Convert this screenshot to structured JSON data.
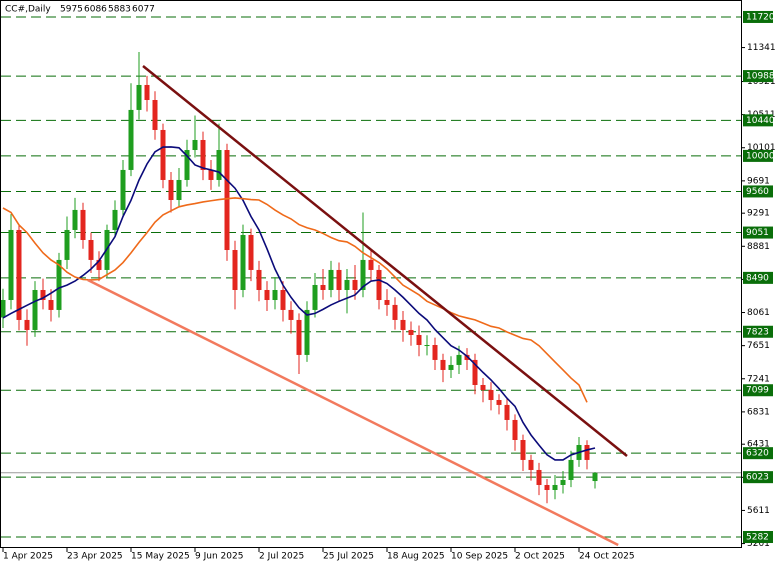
{
  "chart_data": {
    "type": "candlestick",
    "title": "CC#,Daily",
    "categories": [
      "1 Apr 2025",
      null,
      null,
      null,
      null,
      null,
      null,
      null,
      "23 Apr 2025",
      null,
      null,
      null,
      null,
      null,
      null,
      null,
      "15 May 2025",
      null,
      null,
      null,
      null,
      null,
      null,
      null,
      "9 Jun 2025",
      null,
      null,
      null,
      null,
      null,
      null,
      null,
      "2 Jul 2025",
      null,
      null,
      null,
      null,
      null,
      null,
      null,
      "25 Jul 2025",
      null,
      null,
      null,
      null,
      null,
      null,
      null,
      "18 Aug 2025",
      null,
      null,
      null,
      null,
      null,
      null,
      null,
      "10 Sep 2025",
      null,
      null,
      null,
      null,
      null,
      null,
      null,
      "2 Oct 2025",
      null,
      null,
      null,
      null,
      null,
      null,
      null,
      "24 Oct 2025",
      null,
      null
    ],
    "open": [
      8000,
      8216,
      9083,
      7969,
      7845,
      8340,
      8216,
      8093,
      8712,
      9083,
      9331,
      8959,
      8712,
      8588,
      9083,
      9331,
      9826,
      10569,
      10878,
      10692,
      10321,
      9702,
      9454,
      9702,
      10073,
      10197,
      9826,
      9702,
      10073,
      8835,
      8340,
      9021,
      8588,
      8340,
      8216,
      8340,
      8093,
      7969,
      7536,
      8093,
      8402,
      8340,
      8588,
      8340,
      8464,
      8340,
      8712,
      8588,
      8216,
      8155,
      7969,
      7845,
      7783,
      7659,
      7659,
      7474,
      7350,
      7412,
      7536,
      7474,
      7164,
      7102,
      6978,
      6917,
      6731,
      6483,
      6236,
      6112,
      5926,
      5864,
      5926,
      5988,
      6236,
      6421,
      5975
    ],
    "high": [
      8356,
      9280,
      9150,
      8100,
      8450,
      8480,
      8350,
      8800,
      9250,
      9480,
      9420,
      9050,
      8820,
      9150,
      9450,
      9950,
      10900,
      11287,
      10990,
      10800,
      10400,
      9800,
      9850,
      10200,
      10500,
      10300,
      9950,
      10400,
      10150,
      8950,
      9150,
      9100,
      8700,
      8450,
      8500,
      8450,
      8200,
      8050,
      8200,
      8550,
      8600,
      8700,
      8680,
      8600,
      8650,
      9300,
      8850,
      8650,
      8350,
      8250,
      8080,
      7950,
      7900,
      7780,
      7750,
      7550,
      7520,
      7650,
      7620,
      7550,
      7250,
      7200,
      7050,
      7000,
      6800,
      6550,
      6300,
      6200,
      6000,
      6050,
      6100,
      6350,
      6520,
      6480,
      6086
    ],
    "low": [
      7870,
      8100,
      7840,
      7650,
      7760,
      8100,
      7950,
      8000,
      8600,
      8980,
      8850,
      8550,
      8450,
      8500,
      9000,
      9250,
      9750,
      10450,
      10550,
      10200,
      9600,
      9300,
      9380,
      9620,
      9980,
      9700,
      9580,
      9620,
      8700,
      8100,
      8250,
      8450,
      8200,
      8080,
      8100,
      7950,
      7800,
      7300,
      7450,
      8000,
      8220,
      8250,
      8200,
      8050,
      8220,
      8250,
      8450,
      8100,
      8020,
      7850,
      7700,
      7650,
      7520,
      7530,
      7350,
      7200,
      7250,
      7300,
      7350,
      7050,
      6950,
      6850,
      6800,
      6600,
      6350,
      6100,
      5980,
      5800,
      5700,
      5750,
      5820,
      5900,
      6150,
      6120,
      5883
    ],
    "close": [
      8216,
      9083,
      7969,
      7845,
      8340,
      8216,
      8093,
      8712,
      9083,
      9331,
      8959,
      8712,
      8588,
      9083,
      9331,
      9826,
      10569,
      10878,
      10692,
      10321,
      9702,
      9454,
      9702,
      10073,
      10197,
      9826,
      9702,
      10073,
      8835,
      8340,
      9021,
      8588,
      8340,
      8216,
      8340,
      8093,
      7969,
      7536,
      8093,
      8402,
      8340,
      8588,
      8340,
      8464,
      8340,
      8712,
      8588,
      8216,
      8155,
      7969,
      7845,
      7783,
      7659,
      7659,
      7474,
      7350,
      7412,
      7536,
      7474,
      7164,
      7102,
      6978,
      6917,
      6731,
      6483,
      6236,
      6112,
      5926,
      5864,
      5926,
      5988,
      6236,
      6421,
      6236,
      6077
    ],
    "up_color": "#1f9e1f",
    "down_color": "#e3261f",
    "overlays": [
      {
        "color": "#0b0b7a",
        "values": [
          7994,
          8050,
          8100,
          8150,
          8200,
          8241,
          8300,
          8365,
          8400,
          8450,
          8520,
          8600,
          8700,
          8850,
          9000,
          9250,
          9450,
          9700,
          9900,
          10050,
          10110,
          10111,
          10100,
          10000,
          9888,
          9850,
          9826,
          9800,
          9700,
          9600,
          9450,
          9250,
          9083,
          8850,
          8600,
          8400,
          8250,
          8120,
          8031,
          8050,
          8100,
          8155,
          8200,
          8240,
          8278,
          8380,
          8450,
          8464,
          8420,
          8340,
          8250,
          8150,
          8050,
          7969,
          7850,
          7750,
          7650,
          7597,
          7520,
          7420,
          7320,
          7226,
          7120,
          7000,
          6900,
          6700,
          6545,
          6420,
          6300,
          6236,
          6236,
          6298,
          6330,
          6360,
          6384
        ]
      },
      {
        "color": "#ef6a1a",
        "values": [
          9355,
          9300,
          9145,
          9050,
          8920,
          8800,
          8712,
          8650,
          8560,
          8500,
          8470,
          8464,
          8470,
          8530,
          8588,
          8680,
          8800,
          8930,
          9050,
          9180,
          9269,
          9320,
          9370,
          9393,
          9410,
          9430,
          9445,
          9460,
          9470,
          9479,
          9470,
          9460,
          9454,
          9400,
          9330,
          9269,
          9220,
          9150,
          9110,
          9083,
          9040,
          8990,
          8950,
          8935,
          8880,
          8800,
          8740,
          8680,
          8600,
          8500,
          8400,
          8340,
          8280,
          8200,
          8155,
          8110,
          8060,
          8020,
          7994,
          7970,
          7930,
          7890,
          7870,
          7820,
          7780,
          7740,
          7721,
          7650,
          7550,
          7449,
          7350,
          7250,
          7164,
          6950,
          null
        ]
      }
    ],
    "trendlines": [
      {
        "color": "#7a1010",
        "from": [
          17.5,
          11113
        ],
        "to": [
          78,
          6285
        ]
      },
      {
        "color": "#f27a5e",
        "from": [
          10.6,
          8464
        ],
        "to": [
          76.9,
          5183
        ]
      }
    ],
    "levels": [
      11720,
      10988,
      10440,
      10000,
      9560,
      9051,
      8490,
      7823,
      7099,
      6320,
      6023,
      5282
    ],
    "level_color": "#0a6e0a",
    "ylim": [
      5146,
      11930
    ],
    "yticks": [
      11341,
      10921,
      10511,
      10101,
      9691,
      9291,
      8881,
      8471,
      8061,
      7651,
      7241,
      6831,
      6431,
      6021,
      5611,
      5201
    ]
  }
}
